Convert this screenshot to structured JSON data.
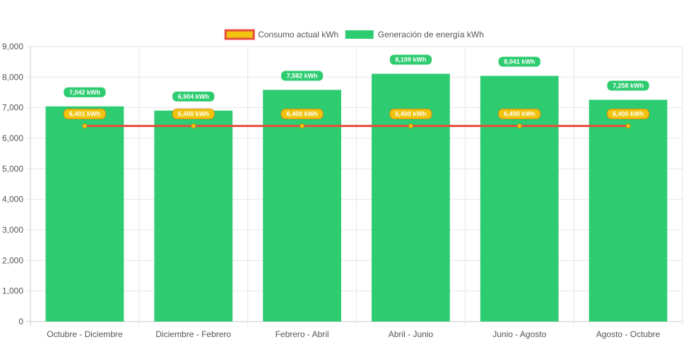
{
  "chart_data": {
    "type": "bar",
    "categories": [
      "Octubre - Diciembre",
      "Diciembre - Febrero",
      "Febrero - Abril",
      "Abril - Junio",
      "Junio - Agosto",
      "Agosto - Octubre"
    ],
    "series": [
      {
        "name": "Consumo actual kWh",
        "type": "line",
        "values": [
          6401,
          6400,
          6400,
          6400,
          6400,
          6400
        ],
        "data_labels": [
          "6,401 kWh",
          "6,400 kWh",
          "6,400 kWh",
          "6,400 kWh",
          "6,400 kWh",
          "6,400 kWh"
        ],
        "line_color": "#e74c3c",
        "point_color": "#f1c40f",
        "label_bg": "#f1c40f",
        "label_border": "#d68910"
      },
      {
        "name": "Generación de energía kWh",
        "type": "bar",
        "values": [
          7042,
          6904,
          7582,
          8109,
          8041,
          7258
        ],
        "data_labels": [
          "7,042 kWh",
          "6,904 kWh",
          "7,582 kWh",
          "8,109 kWh",
          "8,041 kWh",
          "7,258 kWh"
        ],
        "color": "#2ecc71",
        "label_bg": "#2ecc71"
      }
    ],
    "yticks": [
      "0",
      "1,000",
      "2,000",
      "3,000",
      "4,000",
      "5,000",
      "6,000",
      "7,000",
      "8,000",
      "9,000"
    ],
    "ylim": [
      0,
      9000
    ],
    "grid": true,
    "legend_position": "top"
  }
}
